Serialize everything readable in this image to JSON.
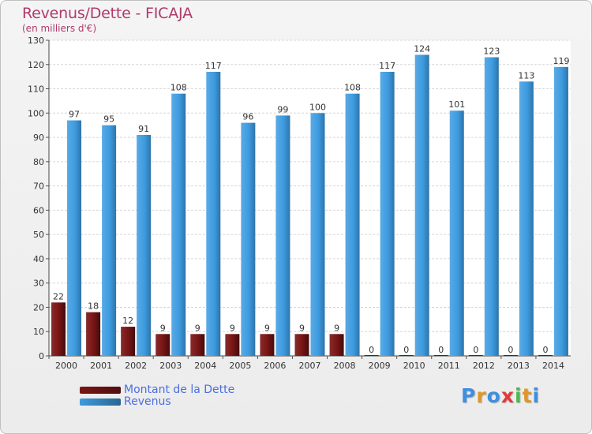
{
  "header": {
    "title": "Revenus/Dette - FICAJA",
    "subtitle": "(en milliers d'€)"
  },
  "legend": {
    "items": [
      {
        "label": "Montant de la Dette",
        "color": "#7a1515"
      },
      {
        "label": "Revenus",
        "color": "#3d9be0"
      }
    ]
  },
  "logo": {
    "text": "Proxiti",
    "colors": [
      "#3d8fe0",
      "#e0962b",
      "#3d8fe0",
      "#e03a3a",
      "#4fb84f",
      "#e0962b",
      "#3d8fe0"
    ]
  },
  "chart_data": {
    "type": "bar",
    "title": "Revenus/Dette - FICAJA",
    "subtitle": "(en milliers d'€)",
    "categories": [
      "2000",
      "2001",
      "2002",
      "2003",
      "2004",
      "2005",
      "2006",
      "2007",
      "2008",
      "2009",
      "2010",
      "2011",
      "2012",
      "2013",
      "2014"
    ],
    "series": [
      {
        "name": "Montant de la Dette",
        "color": "#7a1515",
        "values": [
          22,
          18,
          12,
          9,
          9,
          9,
          9,
          9,
          9,
          0,
          0,
          0,
          0,
          0,
          0
        ]
      },
      {
        "name": "Revenus",
        "color": "#3d9be0",
        "values": [
          97,
          95,
          91,
          108,
          117,
          96,
          99,
          100,
          108,
          117,
          124,
          101,
          123,
          113,
          119
        ]
      }
    ],
    "ylim": [
      0,
      130
    ],
    "yticks": [
      0,
      10,
      20,
      30,
      40,
      50,
      60,
      70,
      80,
      90,
      100,
      110,
      120,
      130
    ],
    "grid": true,
    "legend_position": "bottom-left"
  }
}
